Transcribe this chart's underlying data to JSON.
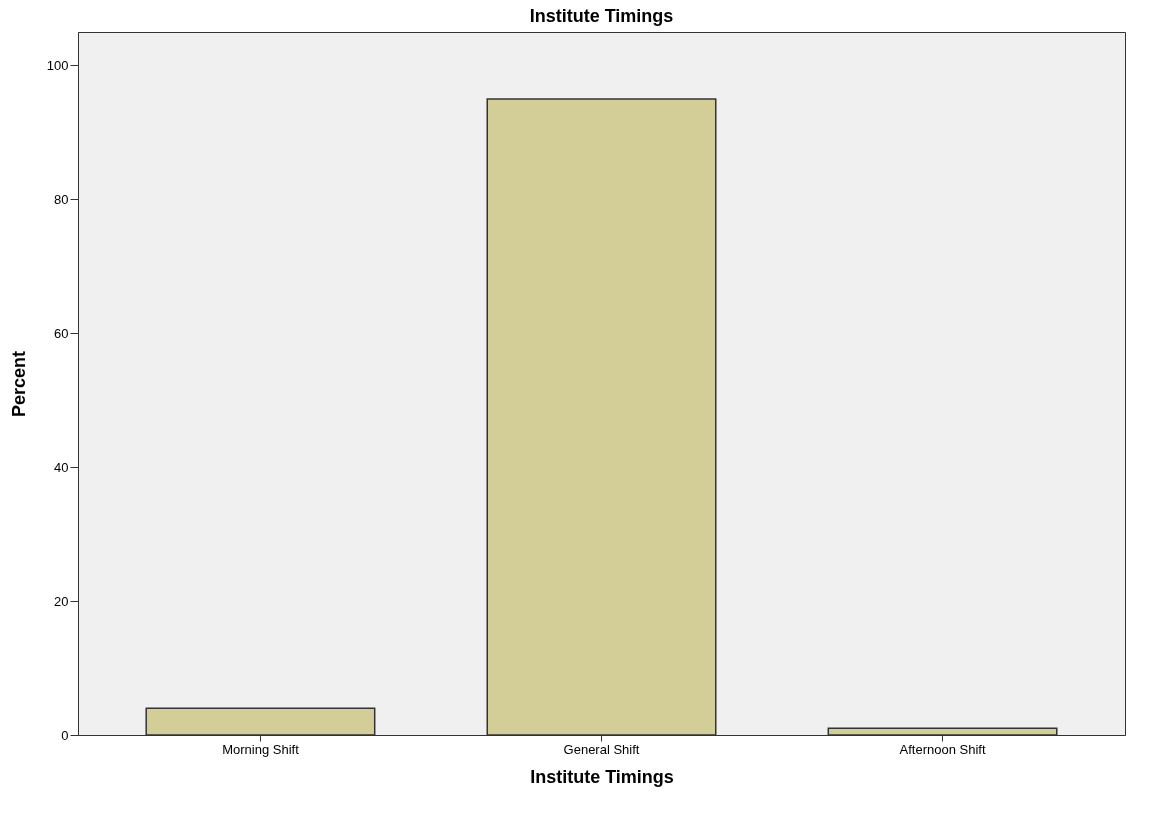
{
  "chart_data": {
    "type": "bar",
    "title": "Institute Timings",
    "xlabel": "Institute Timings",
    "ylabel": "Percent",
    "categories": [
      "Morning Shift",
      "General Shift",
      "Afternoon Shift"
    ],
    "values": [
      4,
      95,
      1
    ],
    "color": "#d3ce97",
    "ylim": [
      0,
      105
    ],
    "yticks": [
      0,
      20,
      40,
      60,
      80,
      100
    ],
    "grid": false
  }
}
